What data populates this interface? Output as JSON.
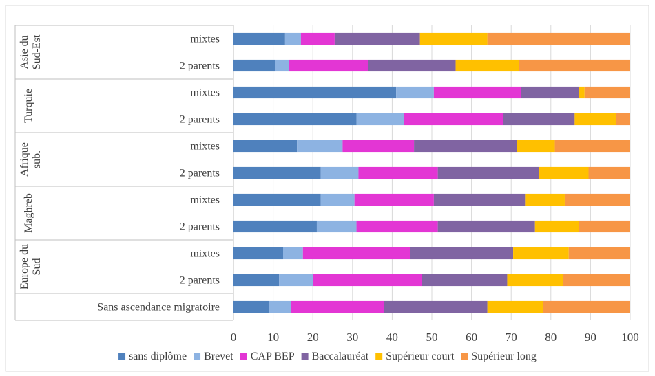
{
  "chart_data": {
    "type": "bar",
    "orientation": "horizontal",
    "stacked": true,
    "groups": [
      {
        "label": "Asie du Sud-Est",
        "label_lines": [
          "Asie du",
          "Sud-Est"
        ],
        "rows": [
          "mixtes",
          "2 parents"
        ]
      },
      {
        "label": "Turquie",
        "label_lines": [
          "Turquie"
        ],
        "rows": [
          "mixtes",
          "2 parents"
        ]
      },
      {
        "label": "Afrique sub.",
        "label_lines": [
          "Afrique",
          "sub."
        ],
        "rows": [
          "mixtes",
          "2 parents"
        ]
      },
      {
        "label": "Maghreb",
        "label_lines": [
          "Maghreb"
        ],
        "rows": [
          "mixtes",
          "2 parents"
        ]
      },
      {
        "label": "Europe du Sud",
        "label_lines": [
          "Europe du",
          "Sud"
        ],
        "rows": [
          "mixtes",
          "2 parents"
        ]
      },
      {
        "label": "",
        "label_lines": [],
        "rows": [
          "Sans ascendance migratoire"
        ]
      }
    ],
    "categories": [
      "mixtes",
      "2 parents",
      "mixtes",
      "2 parents",
      "mixtes",
      "2 parents",
      "mixtes",
      "2 parents",
      "mixtes",
      "2 parents",
      "Sans ascendance migratoire"
    ],
    "series": [
      {
        "name": "sans diplôme",
        "color": "#4f81bd",
        "values": [
          13,
          10.5,
          41,
          31,
          16,
          22,
          22,
          21,
          12.5,
          11.5,
          9
        ]
      },
      {
        "name": "Brevet",
        "color": "#8db3e2",
        "values": [
          4,
          3.5,
          9.5,
          12,
          11.5,
          9.5,
          8.5,
          10,
          5,
          8.5,
          5.5
        ]
      },
      {
        "name": "CAP BEP",
        "color": "#e336d4",
        "values": [
          8.5,
          20,
          22,
          25,
          18,
          20,
          20,
          20.5,
          27,
          27.5,
          23.5
        ]
      },
      {
        "name": "Baccalauréat",
        "color": "#8064a2",
        "values": [
          21.5,
          22,
          14.5,
          18,
          26,
          25.5,
          23,
          24.5,
          26,
          21.5,
          26
        ]
      },
      {
        "name": "Supérieur court",
        "color": "#ffc000",
        "values": [
          17,
          16,
          1.5,
          10.5,
          9.5,
          12.5,
          10,
          11,
          14,
          14,
          14
        ]
      },
      {
        "name": "Supérieur long",
        "color": "#f79646",
        "values": [
          36,
          28,
          11.5,
          3.5,
          19,
          10.5,
          16.5,
          13,
          15.5,
          17,
          22
        ]
      }
    ],
    "xlim": [
      0,
      100
    ],
    "xticks": [
      0,
      10,
      20,
      30,
      40,
      50,
      60,
      70,
      80,
      90,
      100
    ],
    "title": "",
    "xlabel": "",
    "ylabel": "",
    "grid": "vertical",
    "legend_position": "bottom"
  }
}
